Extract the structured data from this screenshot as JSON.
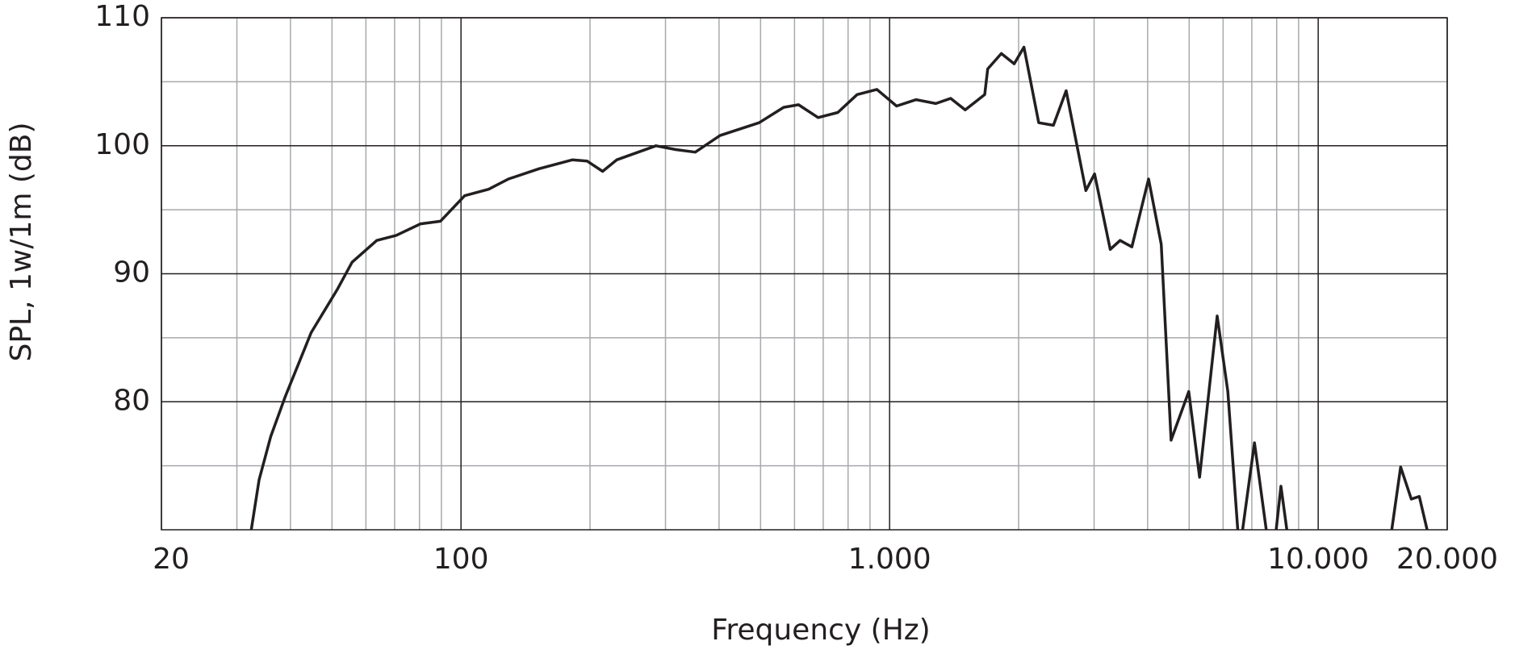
{
  "chart_data": {
    "type": "line",
    "xlabel": "Frequency (Hz)",
    "ylabel": "SPL, 1w/1m (dB)",
    "x_log": true,
    "xlim": [
      20,
      20000
    ],
    "xticks": [
      20,
      100,
      {
        "value": 1000,
        "label": "1.000"
      },
      {
        "value": 10000,
        "label": "10.000"
      },
      {
        "value": 20000,
        "label": "20.000"
      }
    ],
    "x_minor_ticks": [
      30,
      40,
      50,
      60,
      70,
      80,
      90,
      200,
      300,
      400,
      500,
      600,
      700,
      800,
      900,
      2000,
      3000,
      4000,
      5000,
      6000,
      7000,
      8000,
      9000
    ],
    "ylim": [
      70,
      110
    ],
    "yticks": [
      80,
      90,
      100,
      110
    ],
    "y_minor_ticks": [
      75,
      85,
      95,
      105
    ],
    "grid": true,
    "series": [
      {
        "color": "#231f20",
        "x": [
          32.4,
          33.8,
          36.0,
          38.9,
          44.7,
          51.5,
          55.7,
          63.6,
          70.6,
          80.5,
          89.5,
          102,
          116,
          129,
          152,
          182,
          197,
          214,
          231,
          285,
          317,
          352,
          402,
          496,
          566,
          613,
          681,
          757,
          840,
          934,
          1038,
          1153,
          1282,
          1388,
          1501,
          1667,
          1694,
          1823,
          1953,
          2058,
          2228,
          2411,
          2582,
          2870,
          3008,
          3272,
          3450,
          3675,
          4020,
          4303,
          4538,
          4990,
          5287,
          5812,
          6155,
          6490,
          null,
          6663,
          7102,
          7566,
          null,
          7978,
          8186,
          8450,
          null,
          14850,
          15570,
          16490,
          17210,
          17950
        ],
        "values": [
          70,
          73.9,
          77.3,
          80.4,
          85.4,
          88.8,
          90.9,
          92.6,
          93.0,
          93.9,
          94.1,
          96.1,
          96.6,
          97.4,
          98.2,
          98.9,
          98.8,
          98.0,
          98.9,
          100.0,
          99.7,
          99.5,
          100.8,
          101.8,
          103.0,
          103.2,
          102.2,
          102.6,
          104.0,
          104.4,
          103.1,
          103.6,
          103.3,
          103.7,
          102.8,
          104.0,
          106.0,
          107.2,
          106.4,
          107.7,
          101.8,
          101.6,
          104.3,
          96.5,
          97.8,
          91.9,
          92.6,
          92.1,
          97.4,
          92.3,
          77.0,
          80.8,
          74.1,
          86.7,
          80.8,
          70,
          null,
          70,
          76.8,
          70,
          null,
          70,
          73.4,
          70,
          null,
          70,
          74.9,
          72.4,
          72.6,
          70
        ]
      }
    ]
  }
}
